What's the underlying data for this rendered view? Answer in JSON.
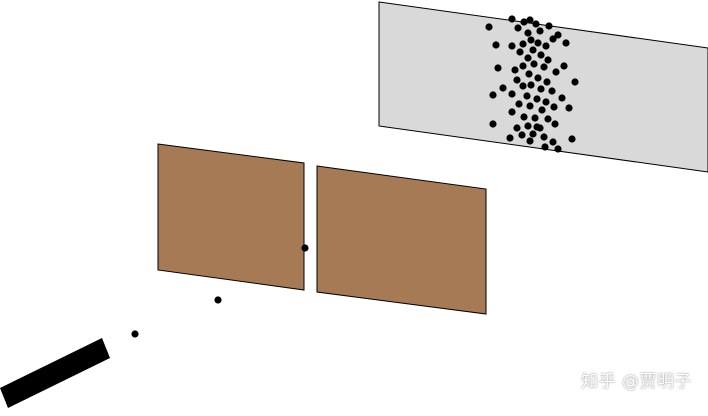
{
  "scene": {
    "screen_color": "#d9d9d9",
    "barrier_color": "#a67a55",
    "particle_color": "#000000",
    "source_color": "#000000",
    "outline_color": "#000000"
  },
  "watermark": {
    "text": "知乎 @贾明子"
  }
}
